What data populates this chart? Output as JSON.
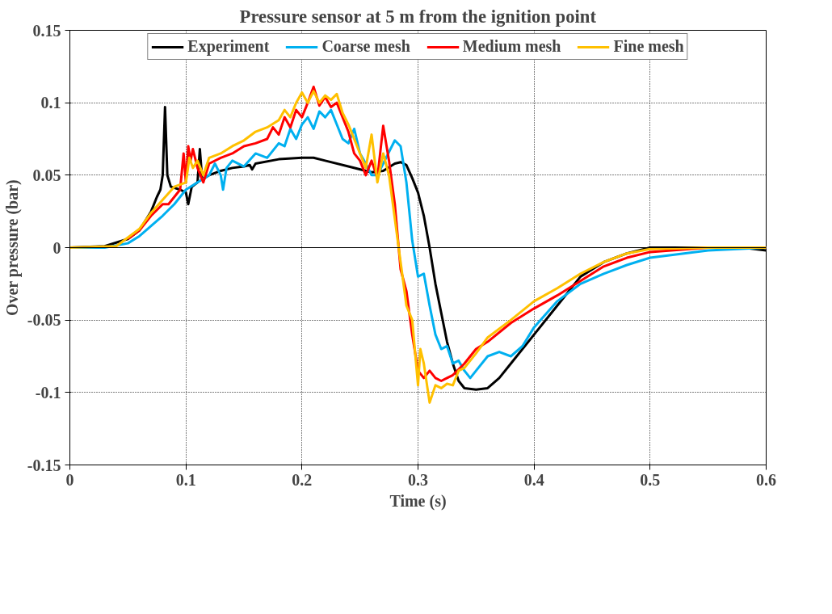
{
  "chart_data": {
    "type": "line",
    "title": "Pressure sensor at 5 m from the ignition point",
    "xlabel": "Time (s)",
    "ylabel": "Over pressure (bar)",
    "xlim": [
      0,
      0.6
    ],
    "xticks": [
      0,
      0.1,
      0.2,
      0.3,
      0.4,
      0.5,
      0.6
    ],
    "ylim": [
      -0.15,
      0.15
    ],
    "yticks": [
      -0.15,
      -0.1,
      -0.05,
      0,
      0.05,
      0.1,
      0.15
    ],
    "grid": true,
    "legend": "top",
    "line_style": "solid",
    "marker": "none",
    "ref_lines": [
      {
        "axis": "y",
        "value": 0,
        "color": "#000000"
      }
    ],
    "series": [
      {
        "name": "Experiment",
        "color": "#000000",
        "x": [
          0,
          0.03,
          0.05,
          0.06,
          0.07,
          0.075,
          0.078,
          0.08,
          0.082,
          0.084,
          0.087,
          0.095,
          0.1,
          0.102,
          0.105,
          0.11,
          0.112,
          0.114,
          0.12,
          0.13,
          0.14,
          0.15,
          0.155,
          0.157,
          0.16,
          0.18,
          0.2,
          0.21,
          0.22,
          0.24,
          0.26,
          0.27,
          0.28,
          0.285,
          0.29,
          0.295,
          0.3,
          0.305,
          0.31,
          0.315,
          0.32,
          0.325,
          0.33,
          0.335,
          0.34,
          0.35,
          0.36,
          0.37,
          0.38,
          0.4,
          0.42,
          0.44,
          0.46,
          0.48,
          0.5,
          0.55,
          0.58,
          0.6
        ],
        "values": [
          0,
          0.001,
          0.006,
          0.012,
          0.025,
          0.035,
          0.04,
          0.05,
          0.097,
          0.05,
          0.042,
          0.04,
          0.038,
          0.03,
          0.042,
          0.045,
          0.068,
          0.047,
          0.05,
          0.053,
          0.055,
          0.056,
          0.057,
          0.054,
          0.058,
          0.061,
          0.062,
          0.062,
          0.06,
          0.056,
          0.052,
          0.053,
          0.058,
          0.059,
          0.057,
          0.048,
          0.038,
          0.022,
          0.0,
          -0.025,
          -0.045,
          -0.065,
          -0.08,
          -0.092,
          -0.097,
          -0.098,
          -0.097,
          -0.09,
          -0.08,
          -0.06,
          -0.04,
          -0.02,
          -0.01,
          -0.004,
          0,
          0,
          0,
          -0.002
        ]
      },
      {
        "name": "Coarse mesh",
        "color": "#00b0f0",
        "x": [
          0,
          0.03,
          0.05,
          0.06,
          0.07,
          0.08,
          0.09,
          0.1,
          0.11,
          0.12,
          0.125,
          0.13,
          0.132,
          0.135,
          0.14,
          0.15,
          0.16,
          0.17,
          0.18,
          0.185,
          0.19,
          0.195,
          0.2,
          0.205,
          0.21,
          0.215,
          0.22,
          0.225,
          0.23,
          0.235,
          0.24,
          0.245,
          0.25,
          0.255,
          0.26,
          0.265,
          0.27,
          0.275,
          0.28,
          0.285,
          0.29,
          0.295,
          0.3,
          0.305,
          0.31,
          0.315,
          0.32,
          0.325,
          0.33,
          0.335,
          0.34,
          0.345,
          0.35,
          0.36,
          0.37,
          0.38,
          0.39,
          0.4,
          0.42,
          0.44,
          0.46,
          0.48,
          0.5,
          0.55,
          0.6
        ],
        "values": [
          0,
          0,
          0.003,
          0.008,
          0.015,
          0.022,
          0.03,
          0.04,
          0.045,
          0.05,
          0.058,
          0.05,
          0.04,
          0.055,
          0.06,
          0.056,
          0.065,
          0.062,
          0.072,
          0.07,
          0.082,
          0.075,
          0.085,
          0.09,
          0.082,
          0.094,
          0.09,
          0.095,
          0.085,
          0.075,
          0.072,
          0.082,
          0.065,
          0.058,
          0.05,
          0.05,
          0.058,
          0.066,
          0.074,
          0.07,
          0.045,
          0.005,
          -0.02,
          -0.018,
          -0.04,
          -0.06,
          -0.07,
          -0.068,
          -0.08,
          -0.078,
          -0.085,
          -0.09,
          -0.085,
          -0.075,
          -0.072,
          -0.075,
          -0.068,
          -0.055,
          -0.037,
          -0.025,
          -0.018,
          -0.012,
          -0.007,
          -0.002,
          0
        ]
      },
      {
        "name": "Medium mesh",
        "color": "#ff0000",
        "x": [
          0.05,
          0.06,
          0.07,
          0.08,
          0.085,
          0.09,
          0.095,
          0.098,
          0.1,
          0.102,
          0.104,
          0.106,
          0.11,
          0.115,
          0.12,
          0.13,
          0.14,
          0.15,
          0.16,
          0.17,
          0.175,
          0.18,
          0.185,
          0.19,
          0.195,
          0.2,
          0.205,
          0.21,
          0.215,
          0.22,
          0.225,
          0.23,
          0.235,
          0.24,
          0.245,
          0.25,
          0.255,
          0.26,
          0.265,
          0.27,
          0.275,
          0.28,
          0.285,
          0.29,
          0.295,
          0.3,
          0.305,
          0.31,
          0.315,
          0.32,
          0.325,
          0.33,
          0.34,
          0.35,
          0.36,
          0.38,
          0.4,
          0.42,
          0.44,
          0.46,
          0.48,
          0.5,
          0.55,
          0.6
        ],
        "values": [
          0.006,
          0.012,
          0.022,
          0.03,
          0.03,
          0.035,
          0.04,
          0.065,
          0.045,
          0.07,
          0.06,
          0.068,
          0.055,
          0.045,
          0.058,
          0.062,
          0.065,
          0.07,
          0.072,
          0.075,
          0.083,
          0.078,
          0.09,
          0.083,
          0.095,
          0.09,
          0.1,
          0.111,
          0.098,
          0.104,
          0.097,
          0.1,
          0.09,
          0.08,
          0.065,
          0.06,
          0.05,
          0.06,
          0.048,
          0.084,
          0.06,
          0.03,
          -0.015,
          -0.03,
          -0.06,
          -0.085,
          -0.09,
          -0.085,
          -0.09,
          -0.092,
          -0.09,
          -0.088,
          -0.08,
          -0.07,
          -0.065,
          -0.052,
          -0.042,
          -0.033,
          -0.023,
          -0.013,
          -0.007,
          -0.003,
          0,
          0
        ]
      },
      {
        "name": "Fine mesh",
        "color": "#ffc000",
        "x": [
          0,
          0.04,
          0.05,
          0.06,
          0.07,
          0.08,
          0.09,
          0.1,
          0.103,
          0.106,
          0.11,
          0.115,
          0.12,
          0.13,
          0.14,
          0.15,
          0.16,
          0.17,
          0.18,
          0.185,
          0.19,
          0.195,
          0.2,
          0.205,
          0.21,
          0.215,
          0.22,
          0.225,
          0.23,
          0.235,
          0.24,
          0.245,
          0.25,
          0.255,
          0.26,
          0.265,
          0.27,
          0.275,
          0.28,
          0.285,
          0.29,
          0.295,
          0.3,
          0.302,
          0.305,
          0.31,
          0.315,
          0.32,
          0.325,
          0.33,
          0.335,
          0.34,
          0.35,
          0.36,
          0.38,
          0.4,
          0.42,
          0.44,
          0.46,
          0.48,
          0.5,
          0.55,
          0.6
        ],
        "values": [
          0,
          0.001,
          0.007,
          0.013,
          0.024,
          0.033,
          0.042,
          0.045,
          0.062,
          0.055,
          0.06,
          0.05,
          0.062,
          0.065,
          0.07,
          0.074,
          0.08,
          0.083,
          0.088,
          0.095,
          0.09,
          0.1,
          0.107,
          0.1,
          0.108,
          0.1,
          0.105,
          0.102,
          0.106,
          0.093,
          0.085,
          0.075,
          0.065,
          0.055,
          0.078,
          0.045,
          0.065,
          0.05,
          0.02,
          -0.01,
          -0.04,
          -0.05,
          -0.095,
          -0.07,
          -0.08,
          -0.107,
          -0.095,
          -0.097,
          -0.094,
          -0.095,
          -0.085,
          -0.083,
          -0.073,
          -0.062,
          -0.05,
          -0.037,
          -0.028,
          -0.018,
          -0.01,
          -0.004,
          -0.001,
          0,
          0
        ]
      }
    ]
  }
}
